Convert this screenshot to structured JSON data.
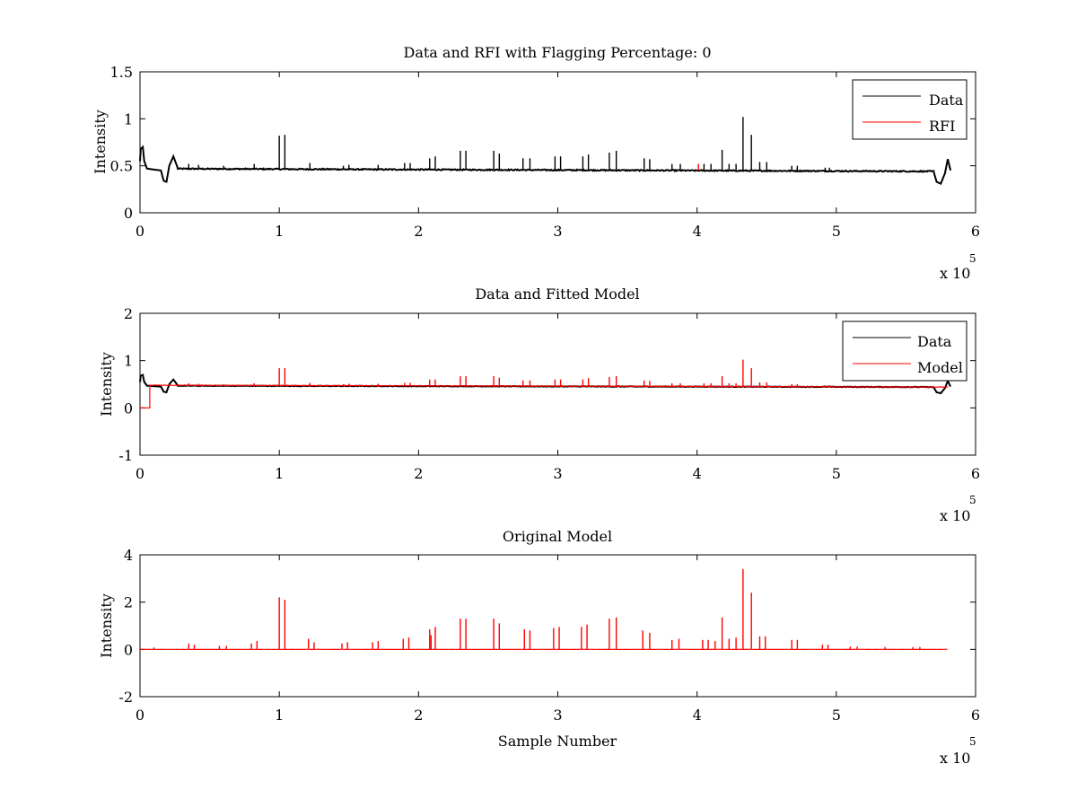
{
  "chart_data": [
    {
      "type": "line",
      "title": "Data and RFI with Flagging Percentage: 0",
      "xlabel": "",
      "ylabel": "Intensity",
      "xlim": [
        0,
        6
      ],
      "ylim": [
        0,
        1.5
      ],
      "x_multiplier": "x 10",
      "x_multiplier_exponent": "5",
      "xticks": [
        0,
        1,
        2,
        3,
        4,
        5,
        6
      ],
      "yticks": [
        0,
        0.5,
        1,
        1.5
      ],
      "ytick_labels": [
        "0",
        "0.5",
        "1",
        "1.5"
      ],
      "legend_position": "top-right",
      "series": [
        {
          "name": "Data",
          "color": "#000000",
          "baseline_start": 0.47,
          "baseline_end": 0.44,
          "x_end": 5.8,
          "points": [
            [
              0,
              0.55
            ],
            [
              0.005,
              0.68
            ],
            [
              0.02,
              0.7
            ],
            [
              0.03,
              0.55
            ],
            [
              0.05,
              0.47
            ],
            [
              0.1,
              0.46
            ],
            [
              0.15,
              0.45
            ],
            [
              0.17,
              0.34
            ],
            [
              0.19,
              0.33
            ],
            [
              0.21,
              0.5
            ],
            [
              0.24,
              0.6
            ],
            [
              0.27,
              0.48
            ],
            [
              5.7,
              0.43
            ],
            [
              5.72,
              0.33
            ],
            [
              5.75,
              0.31
            ],
            [
              5.78,
              0.42
            ],
            [
              5.8,
              0.57
            ],
            [
              5.82,
              0.45
            ]
          ],
          "spikes": [
            [
              0.35,
              0.52
            ],
            [
              0.42,
              0.51
            ],
            [
              0.6,
              0.5
            ],
            [
              0.82,
              0.52
            ],
            [
              1.0,
              0.82
            ],
            [
              1.04,
              0.83
            ],
            [
              1.22,
              0.53
            ],
            [
              1.46,
              0.5
            ],
            [
              1.5,
              0.51
            ],
            [
              1.71,
              0.51
            ],
            [
              1.9,
              0.53
            ],
            [
              1.94,
              0.53
            ],
            [
              2.08,
              0.58
            ],
            [
              2.12,
              0.6
            ],
            [
              2.3,
              0.66
            ],
            [
              2.34,
              0.66
            ],
            [
              2.54,
              0.66
            ],
            [
              2.58,
              0.63
            ],
            [
              2.75,
              0.58
            ],
            [
              2.8,
              0.58
            ],
            [
              2.98,
              0.6
            ],
            [
              3.02,
              0.6
            ],
            [
              3.18,
              0.6
            ],
            [
              3.22,
              0.62
            ],
            [
              3.37,
              0.64
            ],
            [
              3.42,
              0.66
            ],
            [
              3.62,
              0.58
            ],
            [
              3.66,
              0.57
            ],
            [
              3.82,
              0.52
            ],
            [
              3.88,
              0.52
            ],
            [
              4.05,
              0.52
            ],
            [
              4.1,
              0.52
            ],
            [
              4.18,
              0.67
            ],
            [
              4.23,
              0.52
            ],
            [
              4.28,
              0.52
            ],
            [
              4.33,
              1.02
            ],
            [
              4.39,
              0.83
            ],
            [
              4.45,
              0.54
            ],
            [
              4.5,
              0.54
            ],
            [
              4.68,
              0.5
            ],
            [
              4.72,
              0.5
            ],
            [
              4.92,
              0.48
            ],
            [
              4.95,
              0.48
            ]
          ]
        },
        {
          "name": "RFI",
          "color": "#ff0000",
          "spikes": [
            [
              4.01,
              0.52
            ]
          ]
        }
      ]
    },
    {
      "type": "line",
      "title": "Data and Fitted Model",
      "xlabel": "",
      "ylabel": "Intensity",
      "xlim": [
        0,
        6
      ],
      "ylim": [
        -1,
        2
      ],
      "x_multiplier": "x 10",
      "x_multiplier_exponent": "5",
      "xticks": [
        0,
        1,
        2,
        3,
        4,
        5,
        6
      ],
      "yticks": [
        -1,
        0,
        1,
        2
      ],
      "ytick_labels": [
        "-1",
        "0",
        "1",
        "2"
      ],
      "legend_position": "top-right",
      "series": [
        {
          "name": "Data",
          "color": "#000000",
          "baseline_start": 0.47,
          "baseline_end": 0.44,
          "x_end": 5.8,
          "points": [
            [
              0,
              0.55
            ],
            [
              0.005,
              0.68
            ],
            [
              0.02,
              0.7
            ],
            [
              0.03,
              0.55
            ],
            [
              0.05,
              0.47
            ],
            [
              0.1,
              0.46
            ],
            [
              0.15,
              0.45
            ],
            [
              0.17,
              0.34
            ],
            [
              0.19,
              0.33
            ],
            [
              0.21,
              0.5
            ],
            [
              0.24,
              0.6
            ],
            [
              0.27,
              0.48
            ],
            [
              5.7,
              0.43
            ],
            [
              5.72,
              0.33
            ],
            [
              5.75,
              0.31
            ],
            [
              5.78,
              0.42
            ],
            [
              5.8,
              0.57
            ],
            [
              5.82,
              0.45
            ]
          ],
          "spikes": []
        },
        {
          "name": "Model",
          "color": "#ff0000",
          "baseline_start": 0.48,
          "baseline_end": 0.44,
          "x_end": 5.8,
          "points": [
            [
              0,
              0.0
            ],
            [
              0.07,
              0.0
            ],
            [
              0.07,
              0.48
            ],
            [
              0.1,
              0.48
            ]
          ],
          "spikes": [
            [
              0.35,
              0.52
            ],
            [
              0.42,
              0.51
            ],
            [
              0.6,
              0.5
            ],
            [
              0.82,
              0.52
            ],
            [
              1.0,
              0.84
            ],
            [
              1.04,
              0.84
            ],
            [
              1.22,
              0.53
            ],
            [
              1.46,
              0.5
            ],
            [
              1.5,
              0.51
            ],
            [
              1.71,
              0.51
            ],
            [
              1.9,
              0.53
            ],
            [
              1.94,
              0.53
            ],
            [
              2.08,
              0.6
            ],
            [
              2.12,
              0.6
            ],
            [
              2.3,
              0.67
            ],
            [
              2.34,
              0.67
            ],
            [
              2.54,
              0.67
            ],
            [
              2.58,
              0.64
            ],
            [
              2.75,
              0.58
            ],
            [
              2.8,
              0.58
            ],
            [
              2.98,
              0.6
            ],
            [
              3.02,
              0.6
            ],
            [
              3.18,
              0.6
            ],
            [
              3.22,
              0.63
            ],
            [
              3.37,
              0.65
            ],
            [
              3.42,
              0.67
            ],
            [
              3.62,
              0.58
            ],
            [
              3.66,
              0.57
            ],
            [
              3.82,
              0.52
            ],
            [
              3.88,
              0.52
            ],
            [
              4.05,
              0.52
            ],
            [
              4.1,
              0.52
            ],
            [
              4.18,
              0.67
            ],
            [
              4.23,
              0.52
            ],
            [
              4.28,
              0.52
            ],
            [
              4.33,
              1.02
            ],
            [
              4.39,
              0.84
            ],
            [
              4.45,
              0.54
            ],
            [
              4.5,
              0.54
            ],
            [
              4.68,
              0.5
            ],
            [
              4.72,
              0.5
            ],
            [
              4.92,
              0.48
            ],
            [
              4.95,
              0.48
            ]
          ]
        }
      ]
    },
    {
      "type": "line",
      "title": "Original Model",
      "xlabel": "Sample Number",
      "ylabel": "Intensity",
      "xlim": [
        0,
        6
      ],
      "ylim": [
        -2,
        4
      ],
      "x_multiplier": "x 10",
      "x_multiplier_exponent": "5",
      "xticks": [
        0,
        1,
        2,
        3,
        4,
        5,
        6
      ],
      "yticks": [
        -2,
        0,
        2,
        4
      ],
      "ytick_labels": [
        "-2",
        "0",
        "2",
        "4"
      ],
      "legend_position": "",
      "series": [
        {
          "name": "",
          "color": "#ff0000",
          "baseline_start": 0.0,
          "baseline_end": 0.0,
          "x_end": 5.8,
          "points": [],
          "spikes": [
            [
              0.1,
              0.08
            ],
            [
              0.35,
              0.25
            ],
            [
              0.39,
              0.2
            ],
            [
              0.57,
              0.15
            ],
            [
              0.62,
              0.15
            ],
            [
              0.8,
              0.25
            ],
            [
              0.84,
              0.35
            ],
            [
              1.0,
              2.2
            ],
            [
              1.04,
              2.1
            ],
            [
              1.21,
              0.45
            ],
            [
              1.25,
              0.3
            ],
            [
              1.45,
              0.25
            ],
            [
              1.49,
              0.3
            ],
            [
              1.67,
              0.3
            ],
            [
              1.71,
              0.35
            ],
            [
              1.89,
              0.45
            ],
            [
              1.93,
              0.5
            ],
            [
              2.08,
              0.85
            ],
            [
              2.09,
              0.6
            ],
            [
              2.12,
              0.95
            ],
            [
              2.3,
              1.3
            ],
            [
              2.34,
              1.3
            ],
            [
              2.54,
              1.3
            ],
            [
              2.58,
              1.1
            ],
            [
              2.76,
              0.85
            ],
            [
              2.8,
              0.8
            ],
            [
              2.97,
              0.9
            ],
            [
              3.01,
              0.95
            ],
            [
              3.17,
              0.95
            ],
            [
              3.21,
              1.05
            ],
            [
              3.37,
              1.3
            ],
            [
              3.42,
              1.35
            ],
            [
              3.61,
              0.8
            ],
            [
              3.66,
              0.7
            ],
            [
              3.82,
              0.4
            ],
            [
              3.87,
              0.45
            ],
            [
              4.04,
              0.4
            ],
            [
              4.08,
              0.4
            ],
            [
              4.13,
              0.35
            ],
            [
              4.18,
              1.35
            ],
            [
              4.23,
              0.45
            ],
            [
              4.28,
              0.5
            ],
            [
              4.33,
              3.4
            ],
            [
              4.39,
              2.4
            ],
            [
              4.45,
              0.55
            ],
            [
              4.49,
              0.55
            ],
            [
              4.68,
              0.4
            ],
            [
              4.72,
              0.4
            ],
            [
              4.9,
              0.2
            ],
            [
              4.94,
              0.2
            ],
            [
              5.1,
              0.12
            ],
            [
              5.15,
              0.12
            ],
            [
              5.35,
              0.1
            ],
            [
              5.55,
              0.1
            ],
            [
              5.6,
              0.1
            ]
          ]
        }
      ]
    }
  ]
}
